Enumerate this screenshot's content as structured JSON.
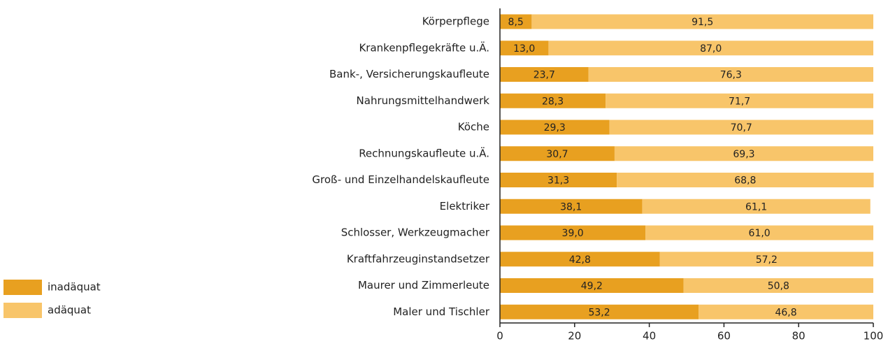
{
  "chart_data": {
    "type": "bar",
    "orientation": "horizontal",
    "stacked": true,
    "categories": [
      "Körperpflege",
      "Krankenpflegekräfte u.Ä.",
      "Bank-, Versicherungskaufleute",
      "Nahrungsmittelhandwerk",
      "Köche",
      "Rechnungskaufleute u.Ä.",
      "Groß- und Einzelhandelskaufleute",
      "Elektriker",
      "Schlosser, Werkzeugmacher",
      "Kraftfahrzeuginstandsetzer",
      "Maurer und Zimmerleute",
      "Maler und Tischler"
    ],
    "series": [
      {
        "name": "inadäquat",
        "color": "#e8a020",
        "values": [
          8.5,
          13.0,
          23.7,
          28.3,
          29.3,
          30.7,
          31.3,
          38.1,
          39.0,
          42.8,
          49.2,
          53.2
        ],
        "value_labels": [
          "8,5",
          "13,0",
          "23,7",
          "28,3",
          "29,3",
          "30,7",
          "31,3",
          "38,1",
          "39,0",
          "42,8",
          "49,2",
          "53,2"
        ]
      },
      {
        "name": "adäquat",
        "color": "#f8c56a",
        "values": [
          91.5,
          87.0,
          76.3,
          71.7,
          70.7,
          69.3,
          68.8,
          61.1,
          61.0,
          57.2,
          50.8,
          46.8
        ],
        "value_labels": [
          "91,5",
          "87,0",
          "76,3",
          "71,7",
          "70,7",
          "69,3",
          "68,8",
          "61,1",
          "61,0",
          "57,2",
          "50,8",
          "46,8"
        ]
      }
    ],
    "xlim": [
      0,
      100
    ],
    "xticks": [
      0,
      20,
      40,
      60,
      80,
      100
    ],
    "legend": "left"
  }
}
